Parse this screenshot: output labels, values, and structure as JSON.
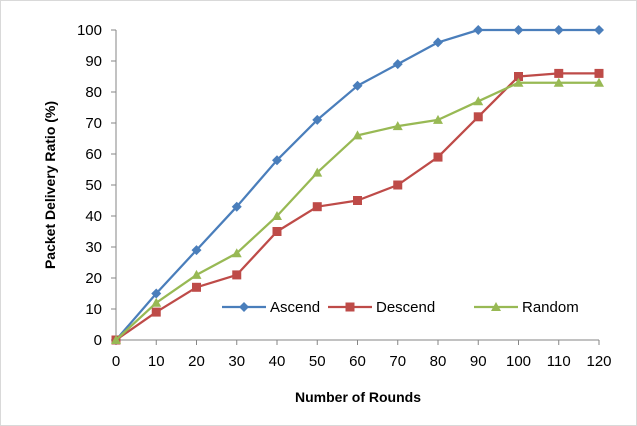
{
  "chart_data": {
    "type": "line",
    "title": "",
    "xlabel": "Number of Rounds",
    "ylabel": "Packet Delivery Ratio (%)",
    "x": [
      0,
      10,
      20,
      30,
      40,
      50,
      60,
      70,
      80,
      90,
      100,
      110,
      120
    ],
    "x_ticks": [
      "0",
      "10",
      "20",
      "30",
      "40",
      "50",
      "60",
      "70",
      "80",
      "90",
      "100",
      "110",
      "120"
    ],
    "xlim": [
      0,
      120
    ],
    "ylim": [
      0,
      100
    ],
    "y_ticks": [
      "0",
      "10",
      "20",
      "30",
      "40",
      "50",
      "60",
      "70",
      "80",
      "90",
      "100"
    ],
    "grid": false,
    "legend_position": "bottom-right",
    "series": [
      {
        "name": "Ascend",
        "color": "#4a7ebb",
        "marker": "diamond",
        "values": [
          0,
          15,
          29,
          43,
          58,
          71,
          82,
          89,
          96,
          100,
          100,
          100,
          100
        ]
      },
      {
        "name": "Descend",
        "color": "#be4b48",
        "marker": "square",
        "values": [
          0,
          9,
          17,
          21,
          35,
          43,
          45,
          50,
          59,
          72,
          85,
          86,
          86
        ]
      },
      {
        "name": "Random",
        "color": "#98b954",
        "marker": "triangle",
        "values": [
          0,
          12,
          21,
          28,
          40,
          54,
          66,
          69,
          71,
          77,
          83,
          83,
          83
        ]
      }
    ]
  }
}
